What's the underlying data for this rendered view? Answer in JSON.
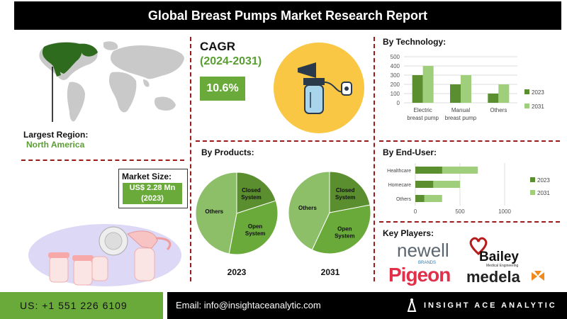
{
  "title": "Global Breast Pumps Market Research Report",
  "region": {
    "label": "Largest Region:",
    "value": "North America"
  },
  "market_size": {
    "label": "Market Size:",
    "line1": "US$ 2.28 Mn",
    "line2": "(2023)"
  },
  "cagr": {
    "title": "CAGR",
    "period": "(2024-2031)",
    "value": "10.6%"
  },
  "products": {
    "title": "By Products:"
  },
  "technology": {
    "title": "By Technology:"
  },
  "end_user": {
    "title": "By End-User:"
  },
  "key_players": {
    "title": "Key Players:",
    "logos": [
      "newell",
      "BRANDS",
      "Bailey",
      "Medical Engineering",
      "Pigeon",
      "medela"
    ]
  },
  "footer": {
    "phone": "US: +1 551 226 6109",
    "email": "Email: info@insightaceanalytic.com",
    "brand": "INSIGHT ACE ANALYTIC"
  },
  "colors": {
    "dark_green": "#5a8e2e",
    "mid_green": "#6aaa3a",
    "light_green": "#9fcf7a",
    "pie_light": "#8cbf67",
    "accent_red": "#9b1b1b"
  },
  "chart_data": [
    {
      "type": "bar",
      "title": "By Technology:",
      "categories": [
        "Electric breast pump",
        "Manual breast pump",
        "Others"
      ],
      "series": [
        {
          "name": "2023",
          "values": [
            300,
            200,
            100
          ]
        },
        {
          "name": "2031",
          "values": [
            400,
            300,
            200
          ]
        }
      ],
      "ylim": [
        0,
        500
      ],
      "yticks": [
        "0",
        "100",
        "200",
        "300",
        "400",
        "500"
      ],
      "legend": "right"
    },
    {
      "type": "bar",
      "orientation": "horizontal",
      "title": "By End-User:",
      "categories": [
        "Healthcare",
        "Homecare",
        "Others"
      ],
      "series": [
        {
          "name": "2023",
          "values": [
            300,
            200,
            100
          ]
        },
        {
          "name": "2031",
          "values": [
            700,
            500,
            300
          ]
        }
      ],
      "xlim": [
        0,
        1000
      ],
      "xticks": [
        "0",
        "500",
        "1000"
      ],
      "legend": "right"
    },
    {
      "type": "pie",
      "title": "2023",
      "labels": [
        "Closed System",
        "Open System",
        "Others"
      ],
      "values": [
        20,
        33,
        47
      ]
    },
    {
      "type": "pie",
      "title": "2031",
      "labels": [
        "Closed System",
        "Open System",
        "Others"
      ],
      "values": [
        22,
        35,
        43
      ]
    }
  ]
}
